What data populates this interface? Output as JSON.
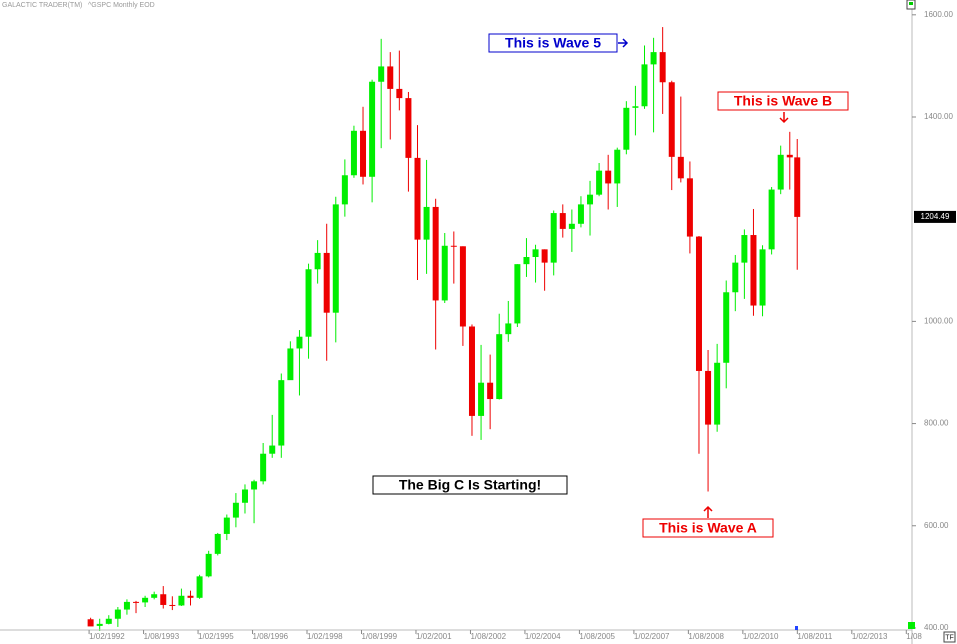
{
  "chart_data": {
    "type": "candlestick",
    "app_name": "GALACTIC TRADER(TM)",
    "subtitle": "^GSPC Monthly EOD",
    "up_color": "#00ee00",
    "down_color": "#ee0000",
    "x": [
      1992.125,
      1992.375,
      1992.625,
      1992.875,
      1993.125,
      1993.375,
      1993.625,
      1993.875,
      1994.125,
      1994.375,
      1994.625,
      1994.875,
      1995.125,
      1995.375,
      1995.625,
      1995.875,
      1996.125,
      1996.375,
      1996.625,
      1996.875,
      1997.125,
      1997.375,
      1997.625,
      1997.875,
      1998.125,
      1998.375,
      1998.625,
      1998.875,
      1999.125,
      1999.375,
      1999.625,
      1999.875,
      2000.125,
      2000.375,
      2000.625,
      2000.875,
      2001.125,
      2001.375,
      2001.625,
      2001.875,
      2002.125,
      2002.375,
      2002.625,
      2002.875,
      2003.125,
      2003.375,
      2003.625,
      2003.875,
      2004.125,
      2004.375,
      2004.625,
      2004.875,
      2005.125,
      2005.375,
      2005.625,
      2005.875,
      2006.125,
      2006.375,
      2006.625,
      2006.875,
      2007.125,
      2007.375,
      2007.625,
      2007.875,
      2008.125,
      2008.375,
      2008.625,
      2008.875,
      2009.125,
      2009.375,
      2009.625,
      2009.875,
      2010.125,
      2010.375,
      2010.625,
      2010.875,
      2011.125,
      2011.375,
      2011.58
    ],
    "open": [
      417,
      404,
      408,
      418,
      436,
      451,
      450,
      459,
      466,
      445,
      444,
      463,
      459,
      501,
      545,
      584,
      616,
      645,
      671,
      687,
      741,
      757,
      885,
      947,
      970,
      1102,
      1134,
      1017,
      1229,
      1286,
      1373,
      1283,
      1469,
      1499,
      1455,
      1437,
      1320,
      1160,
      1224,
      1041,
      1148,
      1147,
      990,
      815,
      880,
      848,
      975,
      996,
      1112,
      1126,
      1141,
      1115,
      1212,
      1181,
      1191,
      1229,
      1248,
      1295,
      1270,
      1336,
      1418,
      1421,
      1503,
      1527,
      1468,
      1322,
      1280,
      1166,
      903,
      798,
      919,
      1057,
      1115,
      1169,
      1031,
      1141,
      1258,
      1326,
      1321
    ],
    "high": [
      420,
      418,
      425,
      441,
      456,
      453,
      463,
      471,
      482,
      462,
      477,
      473,
      504,
      551,
      586,
      622,
      664,
      681,
      690,
      762,
      817,
      898,
      961,
      983,
      1113,
      1159,
      1191,
      1244,
      1317,
      1383,
      1420,
      1473,
      1553,
      1527,
      1530,
      1449,
      1384,
      1316,
      1240,
      1173,
      1176,
      1147,
      994,
      954,
      935,
      1015,
      1040,
      1112,
      1163,
      1150,
      1141,
      1217,
      1229,
      1219,
      1245,
      1275,
      1310,
      1326,
      1340,
      1431,
      1461,
      1540,
      1555,
      1576,
      1471,
      1440,
      1313,
      1167,
      944,
      956,
      1080,
      1130,
      1180,
      1220,
      1149,
      1263,
      1344,
      1371,
      1357
    ],
    "low": [
      404,
      394,
      407,
      402,
      426,
      429,
      441,
      456,
      438,
      435,
      443,
      444,
      457,
      499,
      542,
      572,
      597,
      624,
      605,
      681,
      733,
      733,
      889,
      855,
      927,
      1074,
      923,
      959,
      1205,
      1281,
      1268,
      1233,
      1339,
      1356,
      1413,
      1254,
      1081,
      1093,
      945,
      1036,
      1074,
      952,
      776,
      768,
      789,
      847,
      960,
      989,
      1087,
      1076,
      1060,
      1090,
      1164,
      1136,
      1184,
      1168,
      1245,
      1219,
      1224,
      1327,
      1364,
      1416,
      1370,
      1406,
      1257,
      1272,
      1133,
      741,
      667,
      784,
      869,
      1020,
      1044,
      1011,
      1010,
      1131,
      1249,
      1258,
      1101
    ],
    "close": [
      403,
      408,
      418,
      436,
      451,
      450,
      459,
      466,
      445,
      444,
      463,
      459,
      501,
      545,
      584,
      616,
      645,
      671,
      687,
      741,
      757,
      885,
      947,
      970,
      1102,
      1134,
      1017,
      1229,
      1286,
      1373,
      1283,
      1469,
      1499,
      1455,
      1437,
      1320,
      1160,
      1224,
      1041,
      1148,
      1147,
      990,
      815,
      880,
      848,
      975,
      996,
      1112,
      1126,
      1141,
      1115,
      1212,
      1181,
      1191,
      1229,
      1248,
      1295,
      1270,
      1336,
      1418,
      1421,
      1503,
      1527,
      1468,
      1322,
      1280,
      1166,
      903,
      798,
      919,
      1057,
      1115,
      1169,
      1031,
      1141,
      1258,
      1326,
      1321,
      1204.49
    ],
    "xlim": [
      1989.63,
      2014.74
    ],
    "ylim": [
      396,
      1629
    ],
    "xticks": [
      {
        "value": 1992.083,
        "label": "1/02/1992"
      },
      {
        "value": 1993.583,
        "label": "1/08/1993"
      },
      {
        "value": 1995.083,
        "label": "1/02/1995"
      },
      {
        "value": 1996.583,
        "label": "1/08/1996"
      },
      {
        "value": 1998.083,
        "label": "1/02/1998"
      },
      {
        "value": 1999.583,
        "label": "1/08/1999"
      },
      {
        "value": 2001.083,
        "label": "1/02/2001"
      },
      {
        "value": 2002.583,
        "label": "1/08/2002"
      },
      {
        "value": 2004.083,
        "label": "1/02/2004"
      },
      {
        "value": 2005.583,
        "label": "1/08/2005"
      },
      {
        "value": 2007.083,
        "label": "1/02/2007"
      },
      {
        "value": 2008.583,
        "label": "1/08/2008"
      },
      {
        "value": 2010.083,
        "label": "1/02/2010"
      },
      {
        "value": 2011.583,
        "label": "1/08/2011"
      },
      {
        "value": 2013.083,
        "label": "1/02/2013"
      },
      {
        "value": 2014.583,
        "label": "1/08"
      }
    ],
    "yticks": [
      {
        "value": 400,
        "label": "400.00"
      },
      {
        "value": 600,
        "label": "600.00"
      },
      {
        "value": 800,
        "label": "800.00"
      },
      {
        "value": 1000,
        "label": "1000.00"
      },
      {
        "value": 1400,
        "label": "1400.00"
      },
      {
        "value": 1600,
        "label": "1600.00"
      }
    ],
    "annotations": [
      "This is Wave 5",
      "This is Wave B",
      "This is Wave A",
      "The Big C Is Starting!"
    ],
    "button": "TF"
  }
}
